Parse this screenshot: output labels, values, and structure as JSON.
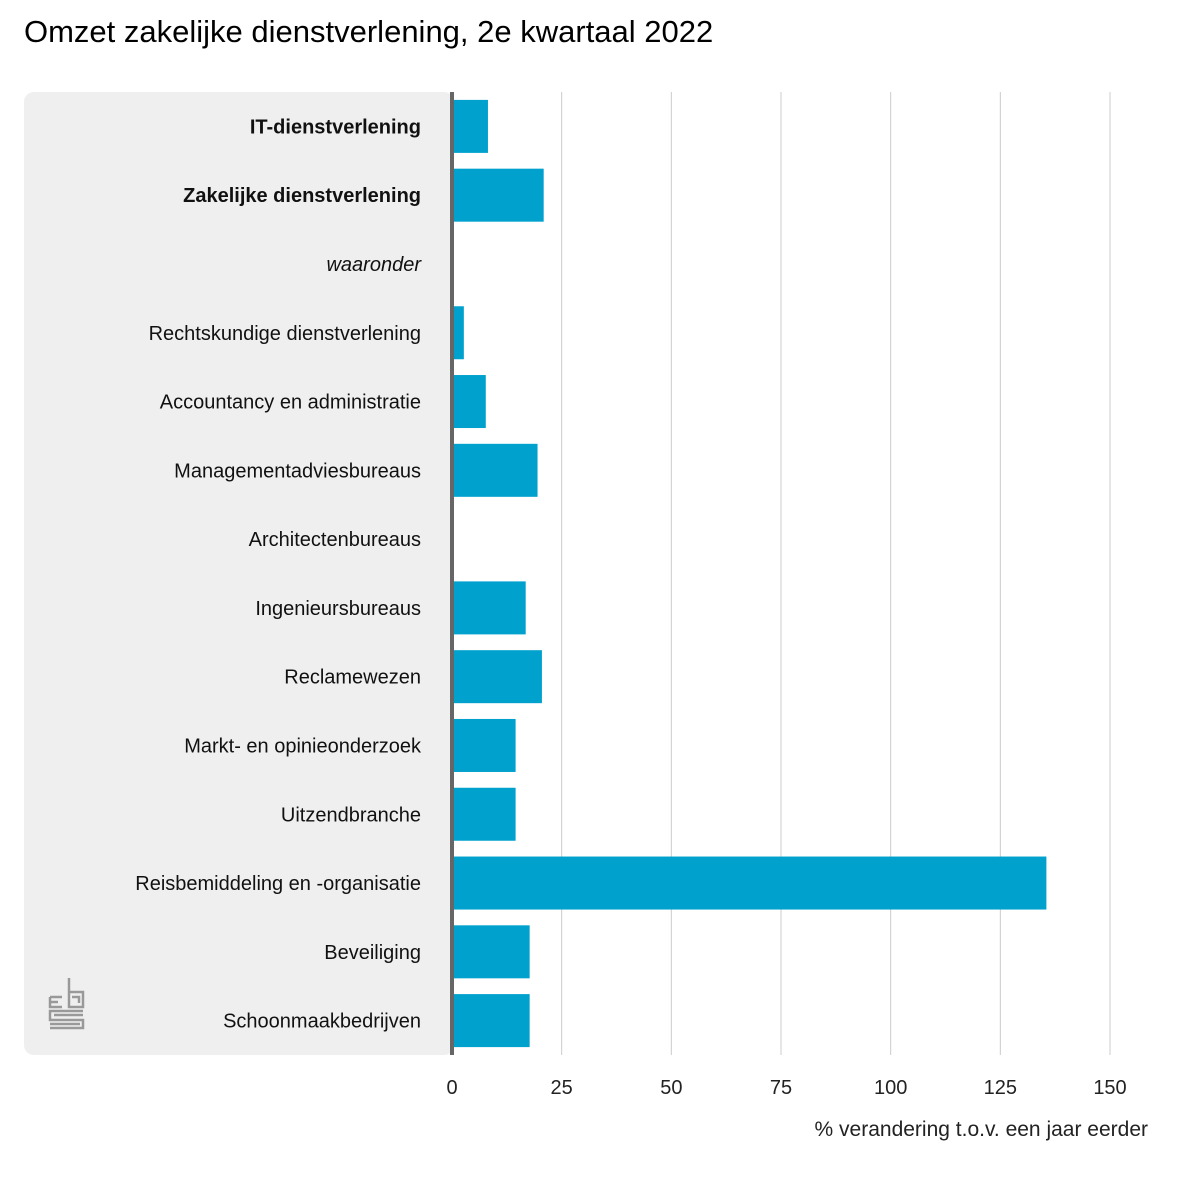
{
  "chart_data": {
    "type": "bar",
    "orientation": "horizontal",
    "title": "Omzet zakelijke dienstverlening, 2e kwartaal 2022",
    "xlabel": "% verandering t.o.v. een jaar eerder",
    "ylabel": "",
    "xlim": [
      0,
      150
    ],
    "xticks": [
      "0",
      "25",
      "50",
      "75",
      "100",
      "125",
      "150"
    ],
    "grid": true,
    "categories": [
      {
        "label": "IT-dienstverlening",
        "style": "bold"
      },
      {
        "label": "Zakelijke dienstverlening",
        "style": "bold"
      },
      {
        "label": "waaronder",
        "style": "italic"
      },
      {
        "label": "Rechtskundige dienstverlening",
        "style": "normal"
      },
      {
        "label": "Accountancy en administratie",
        "style": "normal"
      },
      {
        "label": "Managementadviesbureaus",
        "style": "normal"
      },
      {
        "label": "Architectenbureaus",
        "style": "normal"
      },
      {
        "label": "Ingenieursbureaus",
        "style": "normal"
      },
      {
        "label": "Reclamewezen",
        "style": "normal"
      },
      {
        "label": "Markt- en opinieonderzoek",
        "style": "normal"
      },
      {
        "label": "Uitzendbranche",
        "style": "normal"
      },
      {
        "label": "Reisbemiddeling en -organisatie",
        "style": "normal"
      },
      {
        "label": "Beveiliging",
        "style": "normal"
      },
      {
        "label": "Schoonmaakbedrijven",
        "style": "normal"
      }
    ],
    "values": [
      8.2,
      20.9,
      null,
      2.7,
      7.7,
      19.5,
      0,
      16.8,
      20.5,
      14.5,
      14.5,
      135.5,
      17.7,
      17.7
    ],
    "colors": {
      "bar": "#00a1cd",
      "panel": "#efefef",
      "axis": "#666666",
      "grid": "#cccccc"
    },
    "logo": "cbs"
  }
}
